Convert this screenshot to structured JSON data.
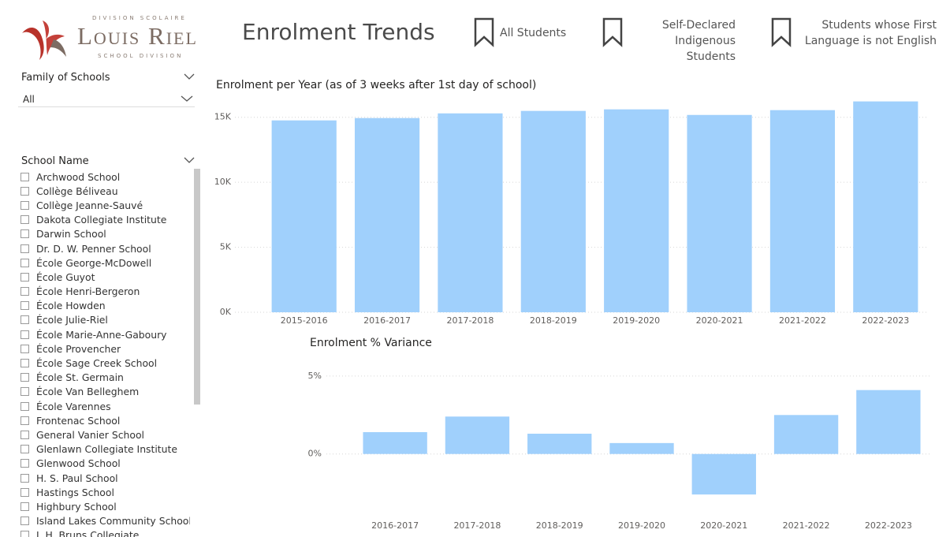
{
  "header": {
    "logo_top": "DIVISION SCOLAIRE",
    "logo_main": "Louis Riel",
    "logo_bottom": "SCHOOL DIVISION",
    "title": "Enrolment Trends",
    "bookmarks": [
      "All Students",
      "Self-Declared Indigenous Students",
      "Students whose First Language is not English"
    ]
  },
  "filters": {
    "family_label": "Family of Schools",
    "family_value": "All",
    "school_label": "School Name",
    "schools": [
      "Archwood School",
      "Collège Béliveau",
      "Collège Jeanne-Sauvé",
      "Dakota Collegiate Institute",
      "Darwin School",
      "Dr. D. W. Penner School",
      "École George-McDowell",
      "École Guyot",
      "École Henri-Bergeron",
      "École Howden",
      "École Julie-Riel",
      "École Marie-Anne-Gaboury",
      "École Provencher",
      "École Sage Creek School",
      "École St. Germain",
      "École Van Belleghem",
      "École Varennes",
      "Frontenac School",
      "General Vanier School",
      "Glenlawn Collegiate Institute",
      "Glenwood School",
      "H. S. Paul School",
      "Hastings School",
      "Highbury School",
      "Island Lakes Community School",
      "J. H. Bruns Collegiate"
    ]
  },
  "chart_data": [
    {
      "type": "bar",
      "title": "Enrolment per Year (as of 3 weeks after 1st day of school)",
      "categories": [
        "2015-2016",
        "2016-2017",
        "2017-2018",
        "2018-2019",
        "2019-2020",
        "2020-2021",
        "2021-2022",
        "2022-2023"
      ],
      "values": [
        14760,
        14940,
        15300,
        15490,
        15610,
        15180,
        15550,
        16220
      ],
      "color": "#a0d0fc",
      "ylim": [
        0,
        16500
      ],
      "yticks": [
        {
          "value": 0,
          "label": "0K"
        },
        {
          "value": 5000,
          "label": "5K"
        },
        {
          "value": 10000,
          "label": "10K"
        },
        {
          "value": 15000,
          "label": "15K"
        }
      ],
      "grid": true
    },
    {
      "type": "bar",
      "title": "Enrolment % Variance",
      "categories": [
        "2016-2017",
        "2017-2018",
        "2018-2019",
        "2019-2020",
        "2020-2021",
        "2021-2022",
        "2022-2023"
      ],
      "values": [
        1.4,
        2.4,
        1.3,
        0.7,
        -2.6,
        2.5,
        4.1
      ],
      "color": "#a0d0fc",
      "ylim": [
        -3,
        5.5
      ],
      "yticks": [
        {
          "value": 0,
          "label": "0%"
        },
        {
          "value": 5,
          "label": "5%"
        }
      ],
      "grid": true
    }
  ]
}
